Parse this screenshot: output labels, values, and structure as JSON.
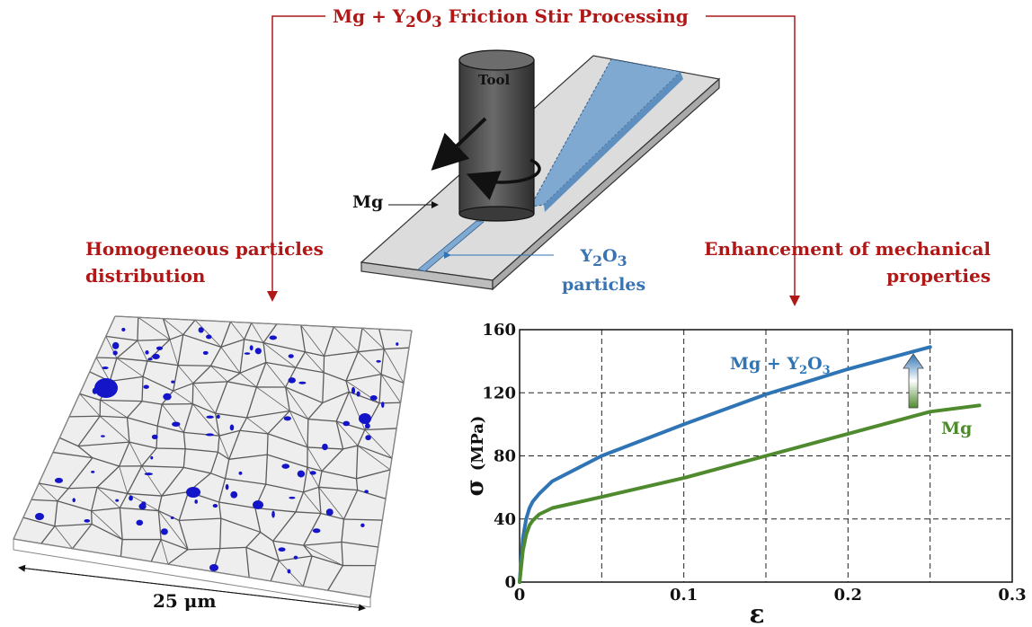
{
  "title": {
    "prefix": "Mg + Y",
    "sub1": "2",
    "mid": "O",
    "sub2": "3",
    "suffix": " Friction Stir Processing"
  },
  "left_caption": {
    "line1": "Homogeneous particles",
    "line2": "distribution"
  },
  "right_caption": {
    "line1": "Enhancement of mechanical",
    "line2": "properties"
  },
  "schematic": {
    "tool_label": "Tool",
    "mg_label": "Mg",
    "particles_label": {
      "prefix": "Y",
      "sub1": "2",
      "mid": "O",
      "sub2": "3",
      "line2": "particles"
    }
  },
  "micrograph": {
    "scale_label": "25 μm"
  },
  "colors": {
    "caption_red": "#b01818",
    "blue_series": "#2f75b5",
    "green_series": "#4f8a2e",
    "processed_strip": "#7fa9d1"
  },
  "chart_data": {
    "type": "line",
    "xlabel": "ε",
    "ylabel": "σ (MPa)",
    "xlim": [
      0,
      0.3
    ],
    "ylim": [
      0,
      160
    ],
    "x_ticks": [
      "0",
      "0.1",
      "0.2",
      "0.3"
    ],
    "y_ticks": [
      "0",
      "40",
      "80",
      "120",
      "160"
    ],
    "grid": true,
    "series": [
      {
        "name": "Mg + Y2O3",
        "label": {
          "prefix": "Mg + Y",
          "sub1": "2",
          "mid": "O",
          "sub2": "3"
        },
        "color": "#2f75b5",
        "x": [
          0,
          0.002,
          0.004,
          0.006,
          0.008,
          0.012,
          0.016,
          0.02,
          0.05,
          0.1,
          0.15,
          0.2,
          0.25
        ],
        "y": [
          0,
          28,
          40,
          47,
          51,
          56,
          60,
          64,
          80,
          100,
          119,
          135,
          149
        ]
      },
      {
        "name": "Mg",
        "label": "Mg",
        "color": "#4f8a2e",
        "x": [
          0,
          0.002,
          0.004,
          0.006,
          0.008,
          0.012,
          0.016,
          0.02,
          0.05,
          0.1,
          0.15,
          0.2,
          0.25,
          0.28
        ],
        "y": [
          0,
          20,
          30,
          36,
          39,
          43,
          45,
          47,
          54,
          66,
          80,
          94,
          108,
          112
        ]
      }
    ]
  }
}
